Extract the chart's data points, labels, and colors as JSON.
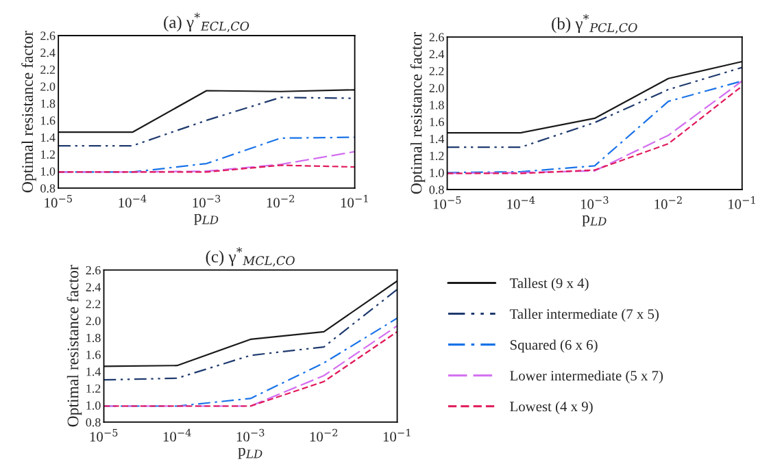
{
  "chart_data": [
    {
      "type": "line",
      "title": "(a) γ$^{*}$$_{ECL,CO}$",
      "xlabel": "p$_{LD}$",
      "ylabel": "Optimal resistance factor",
      "log": "x",
      "grid": false,
      "legend": false,
      "x": [
        1e-05,
        0.0001,
        0.001,
        0.01,
        0.1
      ],
      "xlim": [
        1e-05,
        0.1
      ],
      "xticks": [
        {
          "value": 1e-05,
          "label": "10$^{−5}$"
        },
        {
          "value": 0.0001,
          "label": "10$^{−4}$"
        },
        {
          "value": 0.001,
          "label": "10$^{−3}$"
        },
        {
          "value": 0.01,
          "label": "10$^{−2}$"
        },
        {
          "value": 0.1,
          "label": "10$^{−1}$"
        }
      ],
      "ylim": [
        0.8,
        2.6
      ],
      "yticks": [
        {
          "value": 0.8,
          "label": "0.8"
        },
        {
          "value": 1.0,
          "label": "1.0"
        },
        {
          "value": 1.2,
          "label": "1.2"
        },
        {
          "value": 1.4,
          "label": "1.4"
        },
        {
          "value": 1.6,
          "label": "1.6"
        },
        {
          "value": 1.8,
          "label": "1.8"
        },
        {
          "value": 2.0,
          "label": "2.0"
        },
        {
          "value": 2.2,
          "label": "2.2"
        },
        {
          "value": 2.4,
          "label": "2.4"
        },
        {
          "value": 2.6,
          "label": "2.6"
        }
      ],
      "series": [
        {
          "color": "#1a1a1a",
          "line_style": "solid",
          "values": [
            1.46,
            1.46,
            1.95,
            1.94,
            1.96
          ]
        },
        {
          "color": "#1f3a6e",
          "line_style": "dashdotdot",
          "values": [
            1.3,
            1.3,
            1.6,
            1.87,
            1.86
          ]
        },
        {
          "color": "#1a73e8",
          "line_style": "dashdot",
          "values": [
            0.99,
            0.99,
            1.09,
            1.39,
            1.4
          ]
        },
        {
          "color": "#d36ef0",
          "line_style": "longdash",
          "values": [
            0.99,
            0.99,
            1.0,
            1.08,
            1.23
          ]
        },
        {
          "color": "#e0195a",
          "line_style": "dashed",
          "values": [
            0.99,
            0.99,
            0.99,
            1.07,
            1.05
          ]
        }
      ]
    },
    {
      "type": "line",
      "title": "(b) γ$^{*}$$_{PCL,CO}$",
      "xlabel": "p$_{LD}$",
      "ylabel": "Optimal resistance factor",
      "log": "x",
      "grid": false,
      "legend": false,
      "x": [
        1e-05,
        0.0001,
        0.001,
        0.01,
        0.1
      ],
      "xlim": [
        1e-05,
        0.1
      ],
      "xticks": [
        {
          "value": 1e-05,
          "label": "10$^{−5}$"
        },
        {
          "value": 0.0001,
          "label": "10$^{−4}$"
        },
        {
          "value": 0.001,
          "label": "10$^{−3}$"
        },
        {
          "value": 0.01,
          "label": "10$^{−2}$"
        },
        {
          "value": 0.1,
          "label": "10$^{−1}$"
        }
      ],
      "ylim": [
        0.8,
        2.6
      ],
      "yticks": [
        {
          "value": 0.8,
          "label": "0.8"
        },
        {
          "value": 1.0,
          "label": "1.0"
        },
        {
          "value": 1.2,
          "label": "1.2"
        },
        {
          "value": 1.4,
          "label": "1.4"
        },
        {
          "value": 1.6,
          "label": "1.6"
        },
        {
          "value": 1.8,
          "label": "1.8"
        },
        {
          "value": 2.0,
          "label": "2.0"
        },
        {
          "value": 2.2,
          "label": "2.2"
        },
        {
          "value": 2.4,
          "label": "2.4"
        },
        {
          "value": 2.6,
          "label": "2.6"
        }
      ],
      "series": [
        {
          "color": "#1a1a1a",
          "line_style": "solid",
          "values": [
            1.47,
            1.47,
            1.64,
            2.11,
            2.31
          ]
        },
        {
          "color": "#1f3a6e",
          "line_style": "dashdotdot",
          "values": [
            1.3,
            1.3,
            1.59,
            1.98,
            2.24
          ]
        },
        {
          "color": "#1a73e8",
          "line_style": "dashdot",
          "values": [
            1.0,
            1.01,
            1.08,
            1.84,
            2.08
          ]
        },
        {
          "color": "#d36ef0",
          "line_style": "longdash",
          "values": [
            0.99,
            1.0,
            1.02,
            1.44,
            2.08
          ]
        },
        {
          "color": "#e0195a",
          "line_style": "dashed",
          "values": [
            0.99,
            0.99,
            1.03,
            1.34,
            2.02
          ]
        }
      ]
    },
    {
      "type": "line",
      "title": "(c) γ$^{*}$$_{MCL,CO}$",
      "xlabel": "p$_{LD}$",
      "ylabel": "Optimal resistance factor",
      "log": "x",
      "grid": false,
      "legend": "right",
      "x": [
        1e-05,
        0.0001,
        0.001,
        0.01,
        0.1
      ],
      "xlim": [
        1e-05,
        0.1
      ],
      "xticks": [
        {
          "value": 1e-05,
          "label": "10$^{−5}$"
        },
        {
          "value": 0.0001,
          "label": "10$^{−4}$"
        },
        {
          "value": 0.001,
          "label": "10$^{−3}$"
        },
        {
          "value": 0.01,
          "label": "10$^{−2}$"
        },
        {
          "value": 0.1,
          "label": "10$^{−1}$"
        }
      ],
      "ylim": [
        0.8,
        2.6
      ],
      "yticks": [
        {
          "value": 0.8,
          "label": "0.8"
        },
        {
          "value": 1.0,
          "label": "1.0"
        },
        {
          "value": 1.2,
          "label": "1.2"
        },
        {
          "value": 1.4,
          "label": "1.4"
        },
        {
          "value": 1.6,
          "label": "1.6"
        },
        {
          "value": 1.8,
          "label": "1.8"
        },
        {
          "value": 2.0,
          "label": "2.0"
        },
        {
          "value": 2.2,
          "label": "2.2"
        },
        {
          "value": 2.4,
          "label": "2.4"
        },
        {
          "value": 2.6,
          "label": "2.6"
        }
      ],
      "series": [
        {
          "name": "Tallest (9 x 4)",
          "color": "#1a1a1a",
          "line_style": "solid",
          "values": [
            1.46,
            1.47,
            1.78,
            1.87,
            2.47
          ]
        },
        {
          "name": "Taller intermediate (7 x 5)",
          "color": "#1f3a6e",
          "line_style": "dashdotdot",
          "values": [
            1.3,
            1.32,
            1.59,
            1.69,
            2.37
          ]
        },
        {
          "name": "Squared (6 x 6)",
          "color": "#1a73e8",
          "line_style": "dashdot",
          "values": [
            0.99,
            0.99,
            1.08,
            1.5,
            2.03
          ]
        },
        {
          "name": "Lower intermediate (5 x 7)",
          "color": "#d36ef0",
          "line_style": "longdash",
          "values": [
            0.99,
            0.99,
            0.99,
            1.35,
            1.94
          ]
        },
        {
          "name": "Lowest (4 x 9)",
          "color": "#e0195a",
          "line_style": "dashed",
          "values": [
            0.99,
            0.99,
            0.99,
            1.28,
            1.87
          ]
        }
      ]
    }
  ]
}
